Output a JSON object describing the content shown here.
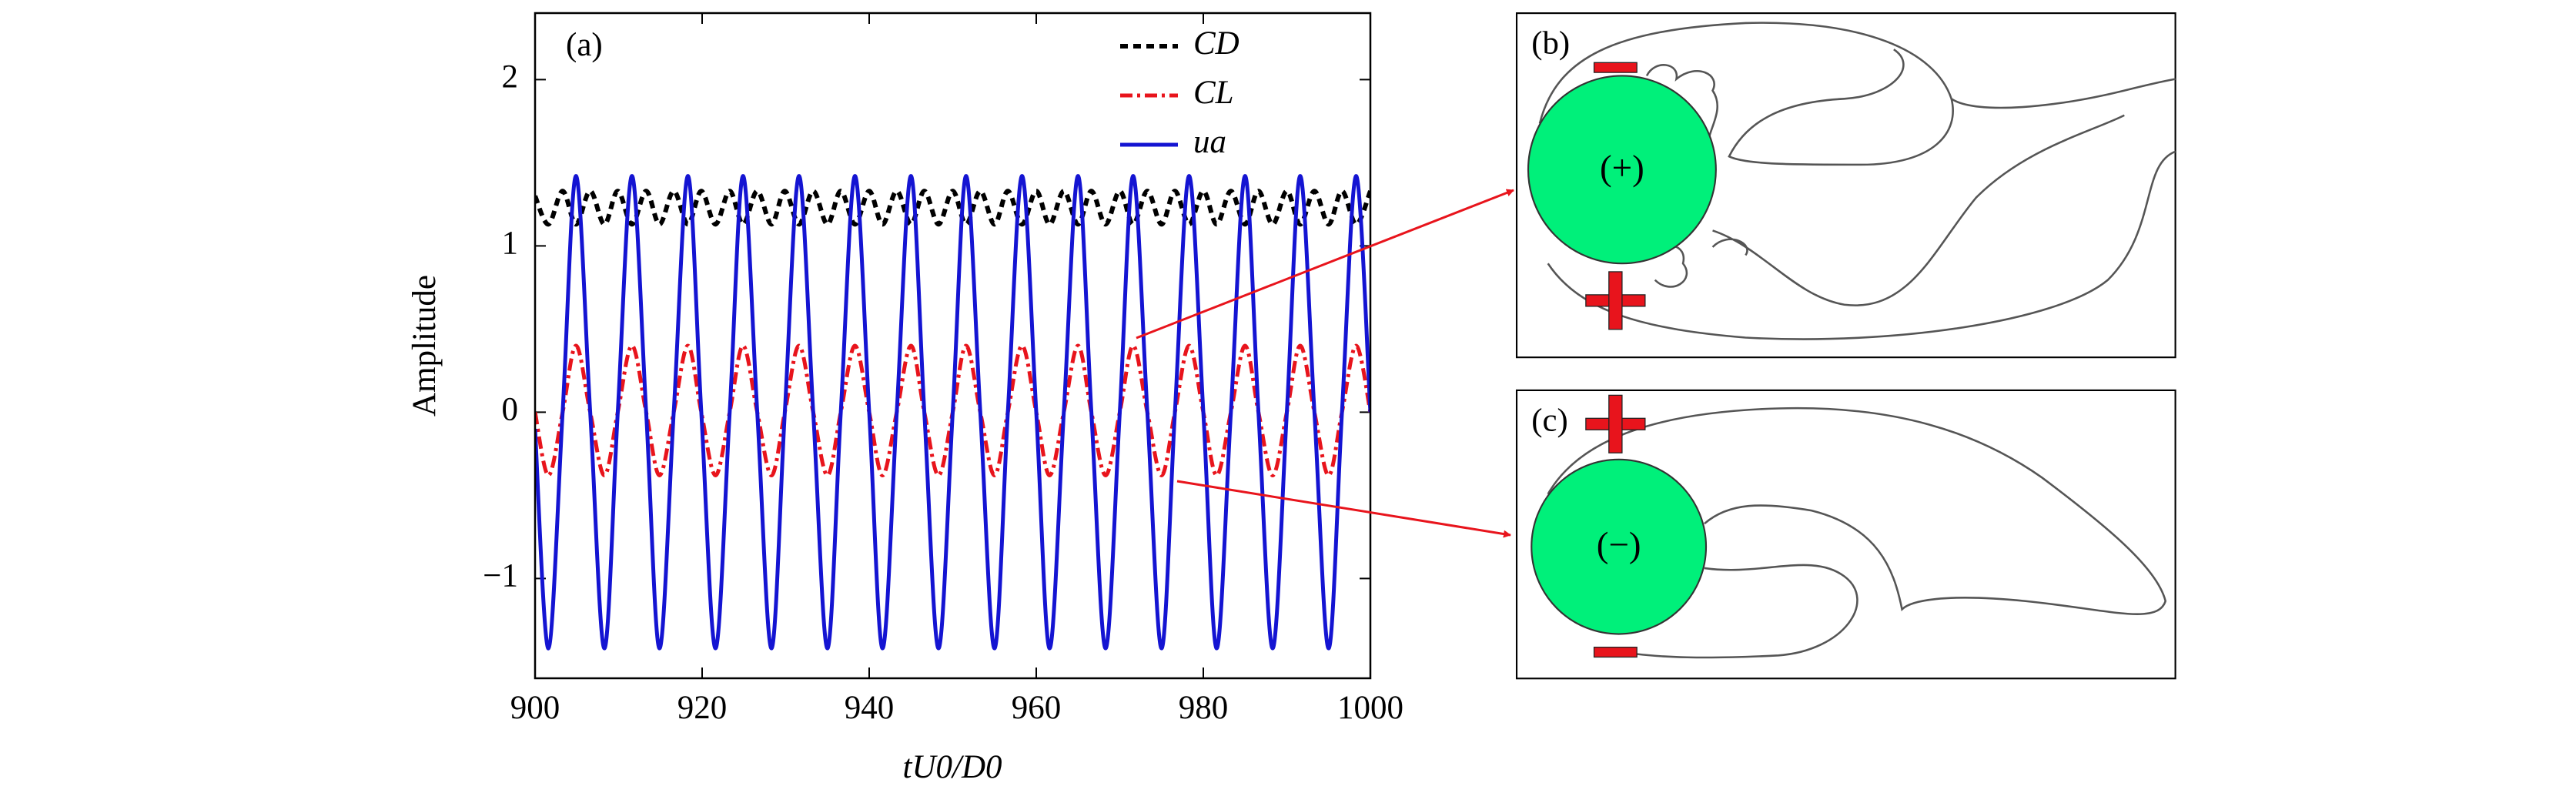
{
  "chart_data": {
    "type": "line",
    "annotation": "(a)",
    "xlabel": "tU0/D0",
    "ylabel": "Amplitude",
    "x": [
      900,
      901.6,
      903.3,
      904.9,
      906.6,
      908.3,
      909.9,
      911.6,
      913.3,
      914.9,
      916.6,
      918.3,
      919.9,
      921.6,
      923.3,
      924.9,
      926.6,
      928.3,
      929.9,
      931.6,
      933.3,
      935.0,
      936.6,
      938.3,
      940.0,
      941.6,
      943.3,
      945.0,
      946.6,
      948.3,
      950.0,
      951.6,
      953.3,
      955.0,
      956.6,
      958.3,
      960.0,
      961.6,
      963.3,
      965.0,
      966.6,
      968.3,
      970.0,
      971.6,
      973.3,
      975.0,
      976.6,
      978.3,
      980.0,
      981.6,
      983.3,
      985.0,
      986.6,
      988.3,
      990.0,
      991.6,
      993.3,
      995.0,
      996.6,
      998.3,
      1000.0
    ],
    "series": [
      {
        "name": "CD",
        "color": "#000000",
        "dash": "dashed",
        "values": [
          1.3,
          1.13,
          1.33,
          1.13,
          1.33,
          1.13,
          1.33,
          1.13,
          1.33,
          1.13,
          1.33,
          1.13,
          1.33,
          1.13,
          1.33,
          1.13,
          1.33,
          1.13,
          1.33,
          1.13,
          1.33,
          1.13,
          1.33,
          1.13,
          1.33,
          1.13,
          1.33,
          1.13,
          1.33,
          1.13,
          1.33,
          1.13,
          1.33,
          1.13,
          1.33,
          1.13,
          1.33,
          1.13,
          1.33,
          1.13,
          1.33,
          1.13,
          1.33,
          1.13,
          1.33,
          1.13,
          1.33,
          1.13,
          1.33,
          1.13,
          1.33,
          1.13,
          1.33,
          1.13,
          1.33,
          1.13,
          1.33,
          1.13,
          1.33,
          1.13,
          1.33
        ]
      },
      {
        "name": "CL",
        "color": "#e8141c",
        "dash": "dashdot",
        "values": [
          0,
          -0.38,
          0,
          0.4,
          0,
          -0.38,
          0,
          0.4,
          0,
          -0.38,
          0,
          0.4,
          0,
          -0.38,
          0,
          0.4,
          0,
          -0.38,
          0,
          0.4,
          0,
          -0.38,
          0,
          0.4,
          0,
          -0.38,
          0,
          0.4,
          0,
          -0.38,
          0,
          0.4,
          0,
          -0.38,
          0,
          0.4,
          0,
          -0.38,
          0,
          0.4,
          0,
          -0.38,
          0,
          0.4,
          0,
          -0.38,
          0,
          0.4,
          0,
          -0.38,
          0,
          0.4,
          0,
          -0.38,
          0,
          0.4,
          0,
          -0.38,
          0,
          0.4,
          0
        ]
      },
      {
        "name": "ua",
        "color": "#1414d2",
        "dash": "solid",
        "values": [
          -0.1,
          -1.42,
          0,
          1.42,
          0,
          -1.42,
          0,
          1.42,
          0,
          -1.42,
          0,
          1.42,
          0,
          -1.42,
          0,
          1.42,
          0,
          -1.42,
          0,
          1.42,
          0,
          -1.42,
          0,
          1.42,
          0,
          -1.42,
          0,
          1.42,
          0,
          -1.42,
          0,
          1.42,
          0,
          -1.42,
          0,
          1.42,
          0,
          -1.42,
          0,
          1.42,
          0,
          -1.42,
          0,
          1.42,
          0,
          -1.42,
          0,
          1.42,
          0,
          -1.42,
          0,
          1.42,
          0,
          -1.42,
          0,
          1.42,
          0,
          -1.42,
          0,
          1.42,
          0
        ]
      }
    ],
    "xlim": [
      900,
      1000
    ],
    "xticks": [
      900,
      920,
      940,
      960,
      980,
      1000
    ],
    "ylim": [
      -1.6,
      2.4
    ],
    "yticks": [
      {
        "value": -1,
        "label": "−1"
      },
      0,
      1,
      2
    ],
    "legend": "upper right"
  },
  "panels": [
    {
      "label": "(b)",
      "sign": "(+)"
    },
    {
      "label": "(c)",
      "sign": "(−)"
    }
  ]
}
